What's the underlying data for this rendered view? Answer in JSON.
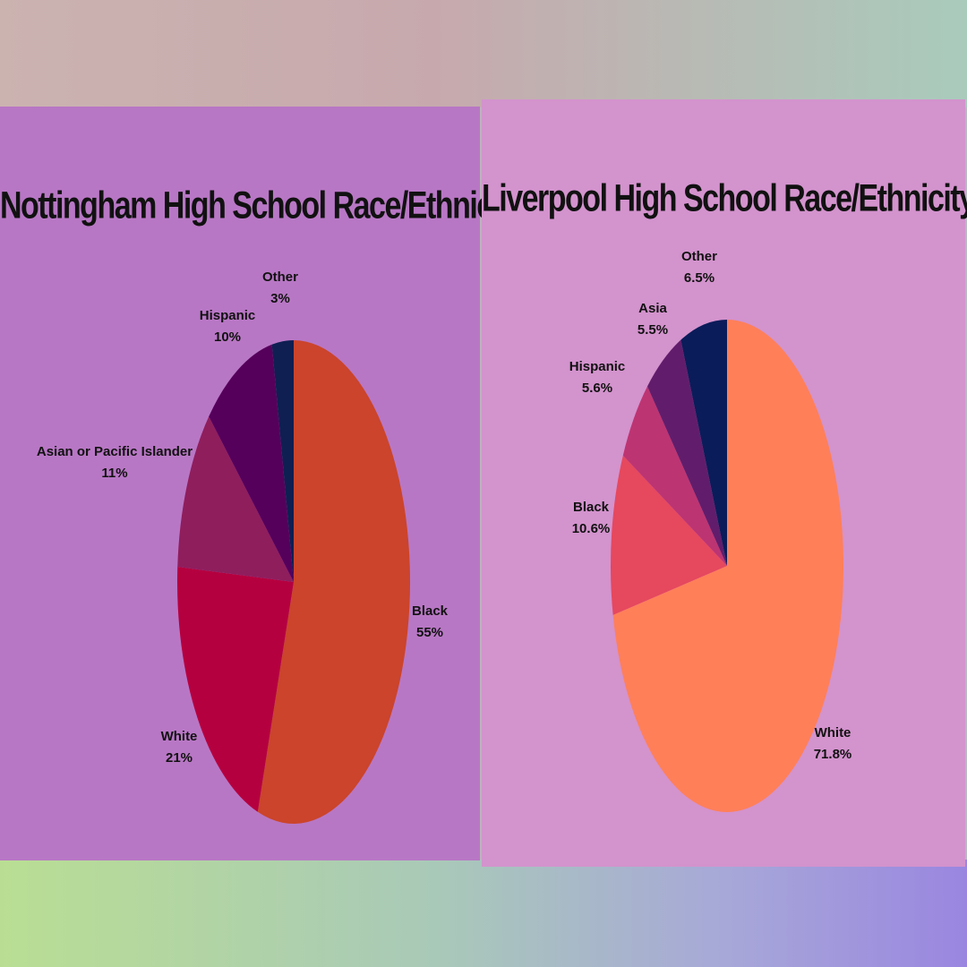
{
  "chart_data": [
    {
      "type": "pie",
      "title": "Nottingham High School Race/Ethnicity",
      "slices": [
        {
          "label": "Black",
          "value": 55,
          "value_label": "55%",
          "color": "#cb442b"
        },
        {
          "label": "White",
          "value": 21,
          "value_label": "21%",
          "color": "#b5003f"
        },
        {
          "label": "Asian or Pacific Islander",
          "value": 11,
          "value_label": "11%",
          "color": "#8f1e5d"
        },
        {
          "label": "Hispanic",
          "value": 10,
          "value_label": "10%",
          "color": "#55005b"
        },
        {
          "label": "Other",
          "value": 3,
          "value_label": "3%",
          "color": "#0f1f52"
        }
      ]
    },
    {
      "type": "pie",
      "title": "Liverpool  High School Race/Ethnicity",
      "slices": [
        {
          "label": "White",
          "value": 71.8,
          "value_label": "71.8%",
          "color": "#ff7f59"
        },
        {
          "label": "Black",
          "value": 10.6,
          "value_label": "10.6%",
          "color": "#e6485e"
        },
        {
          "label": "Hispanic",
          "value": 5.6,
          "value_label": "5.6%",
          "color": "#bd3472"
        },
        {
          "label": "Asia",
          "value": 5.5,
          "value_label": "5.5%",
          "color": "#611d6b"
        },
        {
          "label": "Other",
          "value": 6.5,
          "value_label": "6.5%",
          "color": "#0b1c5a"
        }
      ]
    }
  ]
}
